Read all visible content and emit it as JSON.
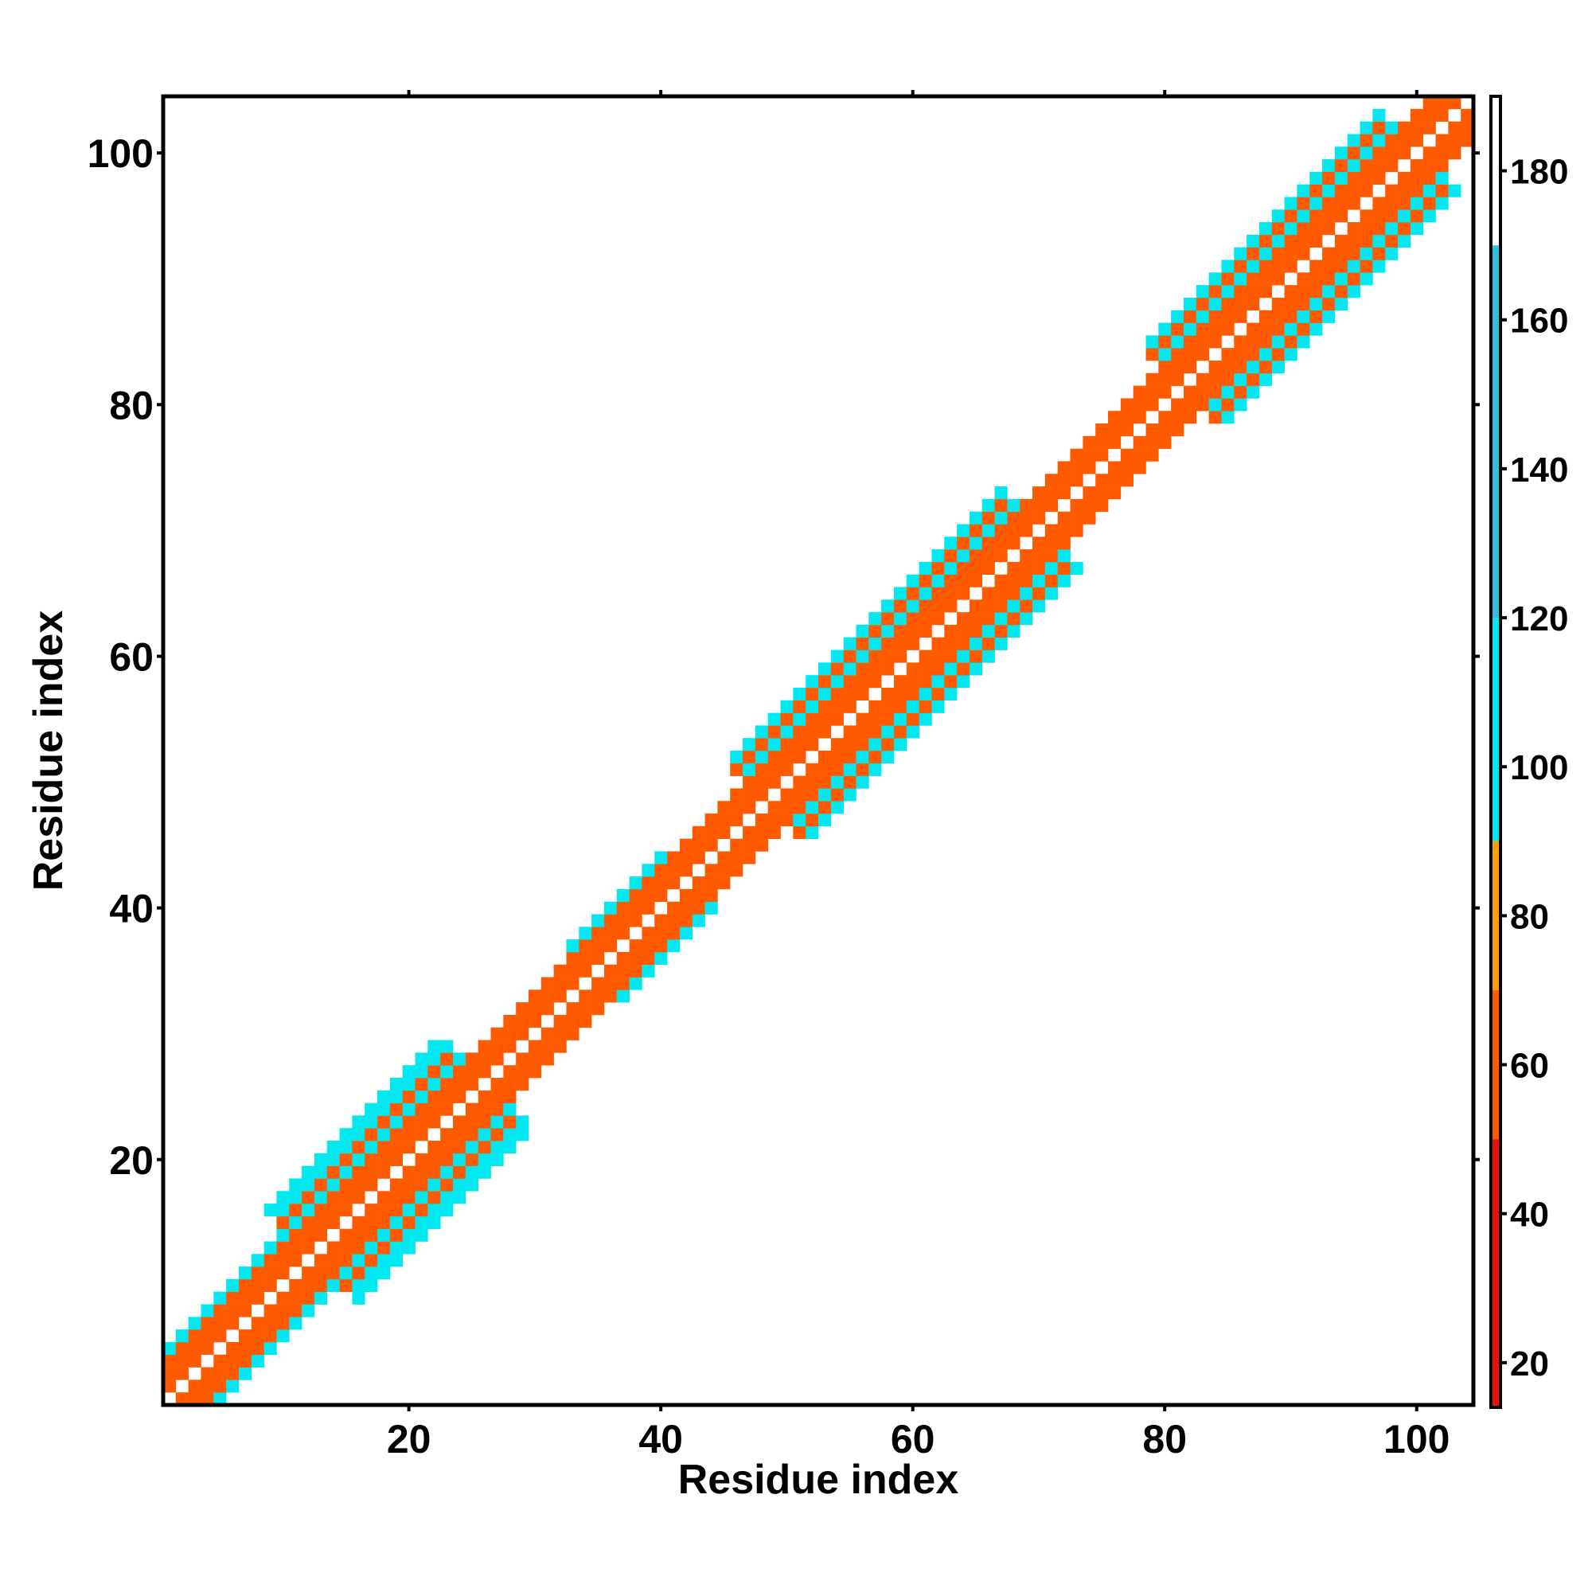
{
  "chart_data": {
    "type": "heatmap",
    "title": "",
    "xlabel": "Residue index",
    "ylabel": "Residue index",
    "xlim": [
      1,
      104
    ],
    "ylim": [
      1,
      104
    ],
    "x_ticks": [
      20,
      40,
      60,
      80,
      100
    ],
    "y_ticks": [
      20,
      40,
      60,
      80,
      100
    ],
    "x_tick_labels": [
      "20",
      "40",
      "60",
      "80",
      "100"
    ],
    "y_tick_labels": [
      "20",
      "40",
      "60",
      "80",
      "100"
    ],
    "colorbar": {
      "range": [
        14,
        190
      ],
      "ticks": [
        20,
        40,
        60,
        80,
        100,
        120,
        140,
        160,
        180
      ],
      "tick_labels": [
        "20",
        "40",
        "60",
        "80",
        "100",
        "120",
        "140",
        "160",
        "180"
      ],
      "bands": [
        {
          "from": 14,
          "to": 50,
          "color": "#e81010"
        },
        {
          "from": 50,
          "to": 70,
          "color": "#ff5a00"
        },
        {
          "from": 70,
          "to": 90,
          "color": "#ffa000"
        },
        {
          "from": 90,
          "to": 120,
          "color": "#00e8f0"
        },
        {
          "from": 120,
          "to": 170,
          "color": "#30c0e0"
        },
        {
          "from": 170,
          "to": 190,
          "color": "#ffffff"
        }
      ]
    },
    "diagonal_band": {
      "description_values": "band half-width (in residues) of off-diagonal contacts along the diagonal; cell value class pattern by distance from diagonal",
      "segments": [
        {
          "start": 1,
          "end": 12,
          "halfwidth": 4
        },
        {
          "start": 12,
          "end": 26,
          "halfwidth": 7
        },
        {
          "start": 26,
          "end": 34,
          "halfwidth": 3
        },
        {
          "start": 34,
          "end": 42,
          "halfwidth": 4
        },
        {
          "start": 42,
          "end": 48,
          "halfwidth": 3
        },
        {
          "start": 48,
          "end": 70,
          "halfwidth": 6
        },
        {
          "start": 70,
          "end": 81,
          "halfwidth": 3
        },
        {
          "start": 81,
          "end": 100,
          "halfwidth": 6
        },
        {
          "start": 100,
          "end": 104,
          "halfwidth": 3
        }
      ],
      "class_by_distance": [
        {
          "distance": 1,
          "value": 60
        },
        {
          "distance": 2,
          "value": 40
        },
        {
          "distance": 3,
          "value": 65
        },
        {
          "distance": 4,
          "value": 110
        },
        {
          "distance": 5,
          "value": 60
        },
        {
          "distance": 6,
          "value": 110
        },
        {
          "distance": 7,
          "value": 100
        }
      ]
    }
  }
}
